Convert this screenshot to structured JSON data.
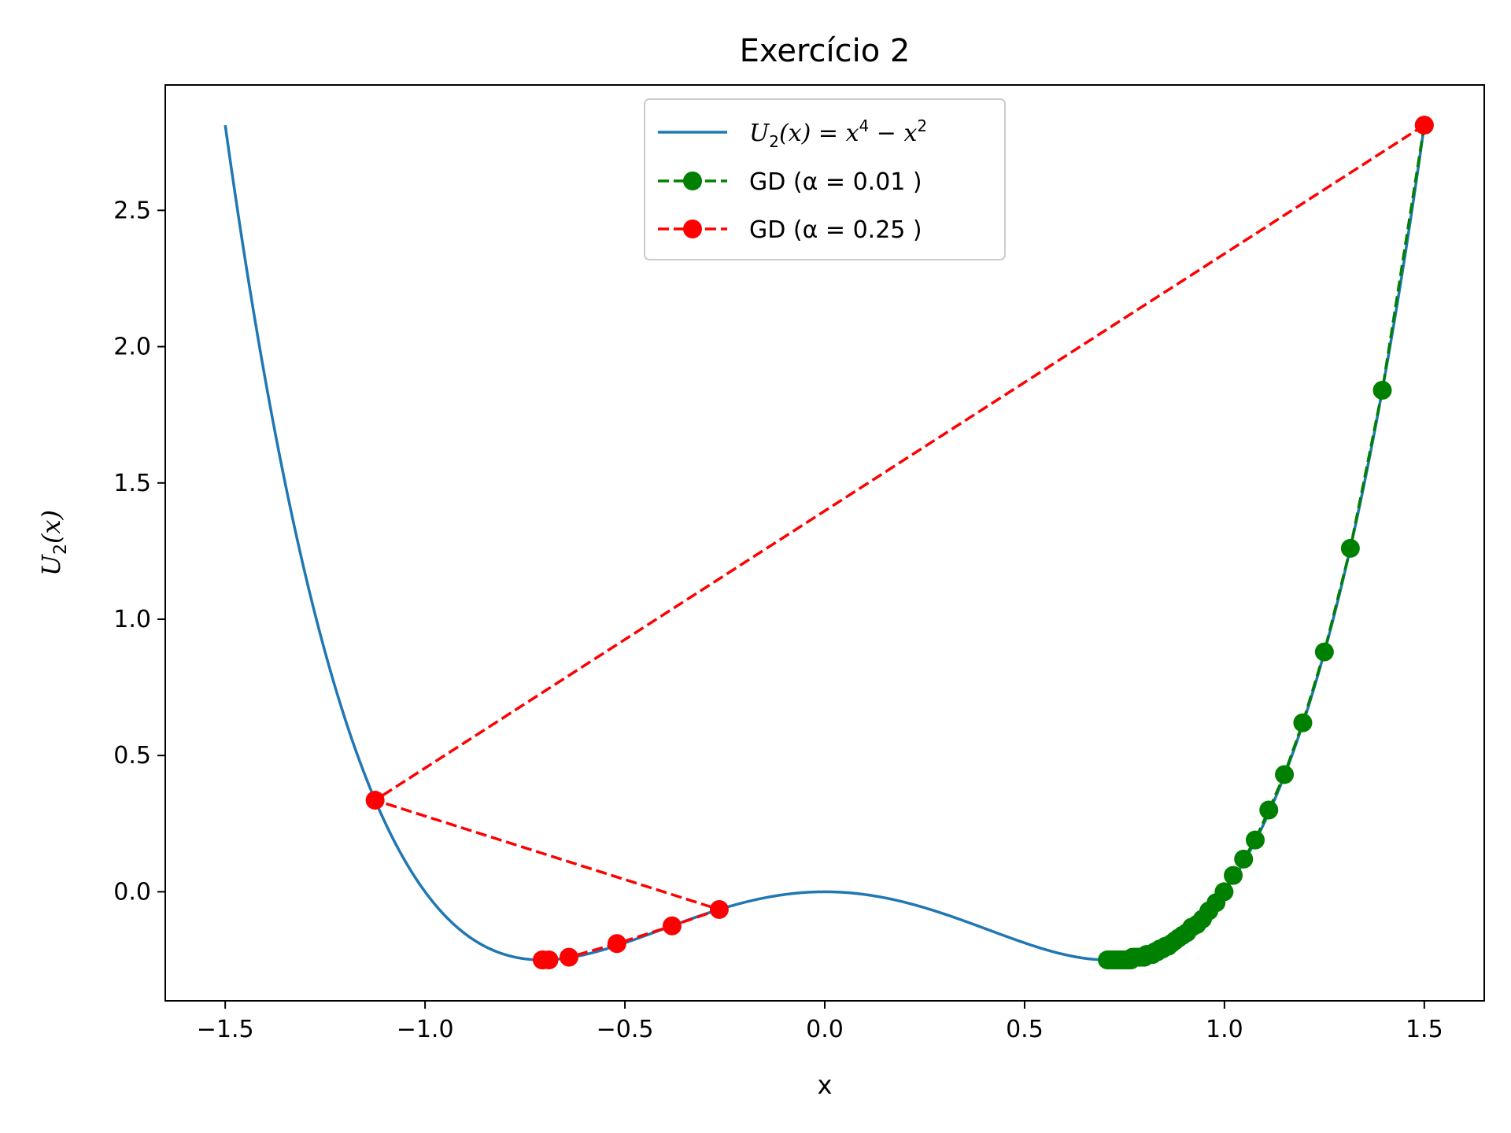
{
  "chart_data": {
    "type": "line",
    "title": "Exercício 2",
    "xlabel": "x",
    "ylabel": {
      "base": "U",
      "sub": "2",
      "rest": "(x)"
    },
    "xlim": [
      -1.65,
      1.65
    ],
    "ylim": [
      -0.4,
      2.96
    ],
    "xticks": [
      -1.5,
      -1.0,
      -0.5,
      0.0,
      0.5,
      1.0,
      1.5
    ],
    "xtick_labels": [
      "−1.5",
      "−1.0",
      "−0.5",
      "0.0",
      "0.5",
      "1.0",
      "1.5"
    ],
    "yticks": [
      0.0,
      0.5,
      1.0,
      1.5,
      2.0,
      2.5
    ],
    "ytick_labels": [
      "0.0",
      "0.5",
      "1.0",
      "1.5",
      "2.0",
      "2.5"
    ],
    "legend_position": "top-center",
    "curve": {
      "name": {
        "base": "U",
        "sub": "2",
        "rest": "(x) = x",
        "sup1": "4",
        "mid": " − x",
        "sup2": "2"
      },
      "color": "#1f77b4",
      "x_range": [
        -1.5,
        1.5
      ]
    },
    "series": [
      {
        "name": "GD (α = 0.01 )",
        "color": "#008000",
        "style": "dashed-markers",
        "x": [
          1.5,
          1.395,
          1.315,
          1.25,
          1.196,
          1.15,
          1.111,
          1.077,
          1.048,
          1.022,
          0.999,
          0.979,
          0.961,
          0.945,
          0.931,
          0.918,
          0.906,
          0.895,
          0.885,
          0.876,
          0.867,
          0.859,
          0.852,
          0.845,
          0.838,
          0.832,
          0.826,
          0.82,
          0.815,
          0.81,
          0.805,
          0.8,
          0.795,
          0.79,
          0.786,
          0.782,
          0.778,
          0.774,
          0.77,
          0.766,
          0.762,
          0.758,
          0.754,
          0.75,
          0.746,
          0.742,
          0.738,
          0.734,
          0.73,
          0.726,
          0.722,
          0.718,
          0.714,
          0.71,
          0.707
        ],
        "y": [
          2.8125,
          1.84,
          1.26,
          0.88,
          0.62,
          0.43,
          0.3,
          0.19,
          0.12,
          0.06,
          0.0,
          -0.04,
          -0.07,
          -0.1,
          -0.12,
          -0.13,
          -0.15,
          -0.16,
          -0.17,
          -0.18,
          -0.19,
          -0.2,
          -0.2,
          -0.21,
          -0.21,
          -0.22,
          -0.22,
          -0.23,
          -0.23,
          -0.23,
          -0.23,
          -0.24,
          -0.24,
          -0.24,
          -0.24,
          -0.24,
          -0.24,
          -0.24,
          -0.24,
          -0.25,
          -0.25,
          -0.25,
          -0.25,
          -0.25,
          -0.25,
          -0.25,
          -0.25,
          -0.25,
          -0.25,
          -0.25,
          -0.25,
          -0.25,
          -0.25,
          -0.25,
          -0.25
        ]
      },
      {
        "name": "GD (α = 0.25 )",
        "color": "#ff0000",
        "style": "dashed-markers",
        "x": [
          1.5,
          -1.125,
          -0.264,
          -0.382,
          -0.52,
          -0.64,
          -0.69,
          -0.705,
          -0.707
        ],
        "y": [
          2.8125,
          0.336,
          -0.065,
          -0.125,
          -0.19,
          -0.24,
          -0.25,
          -0.25,
          -0.25
        ]
      }
    ]
  }
}
